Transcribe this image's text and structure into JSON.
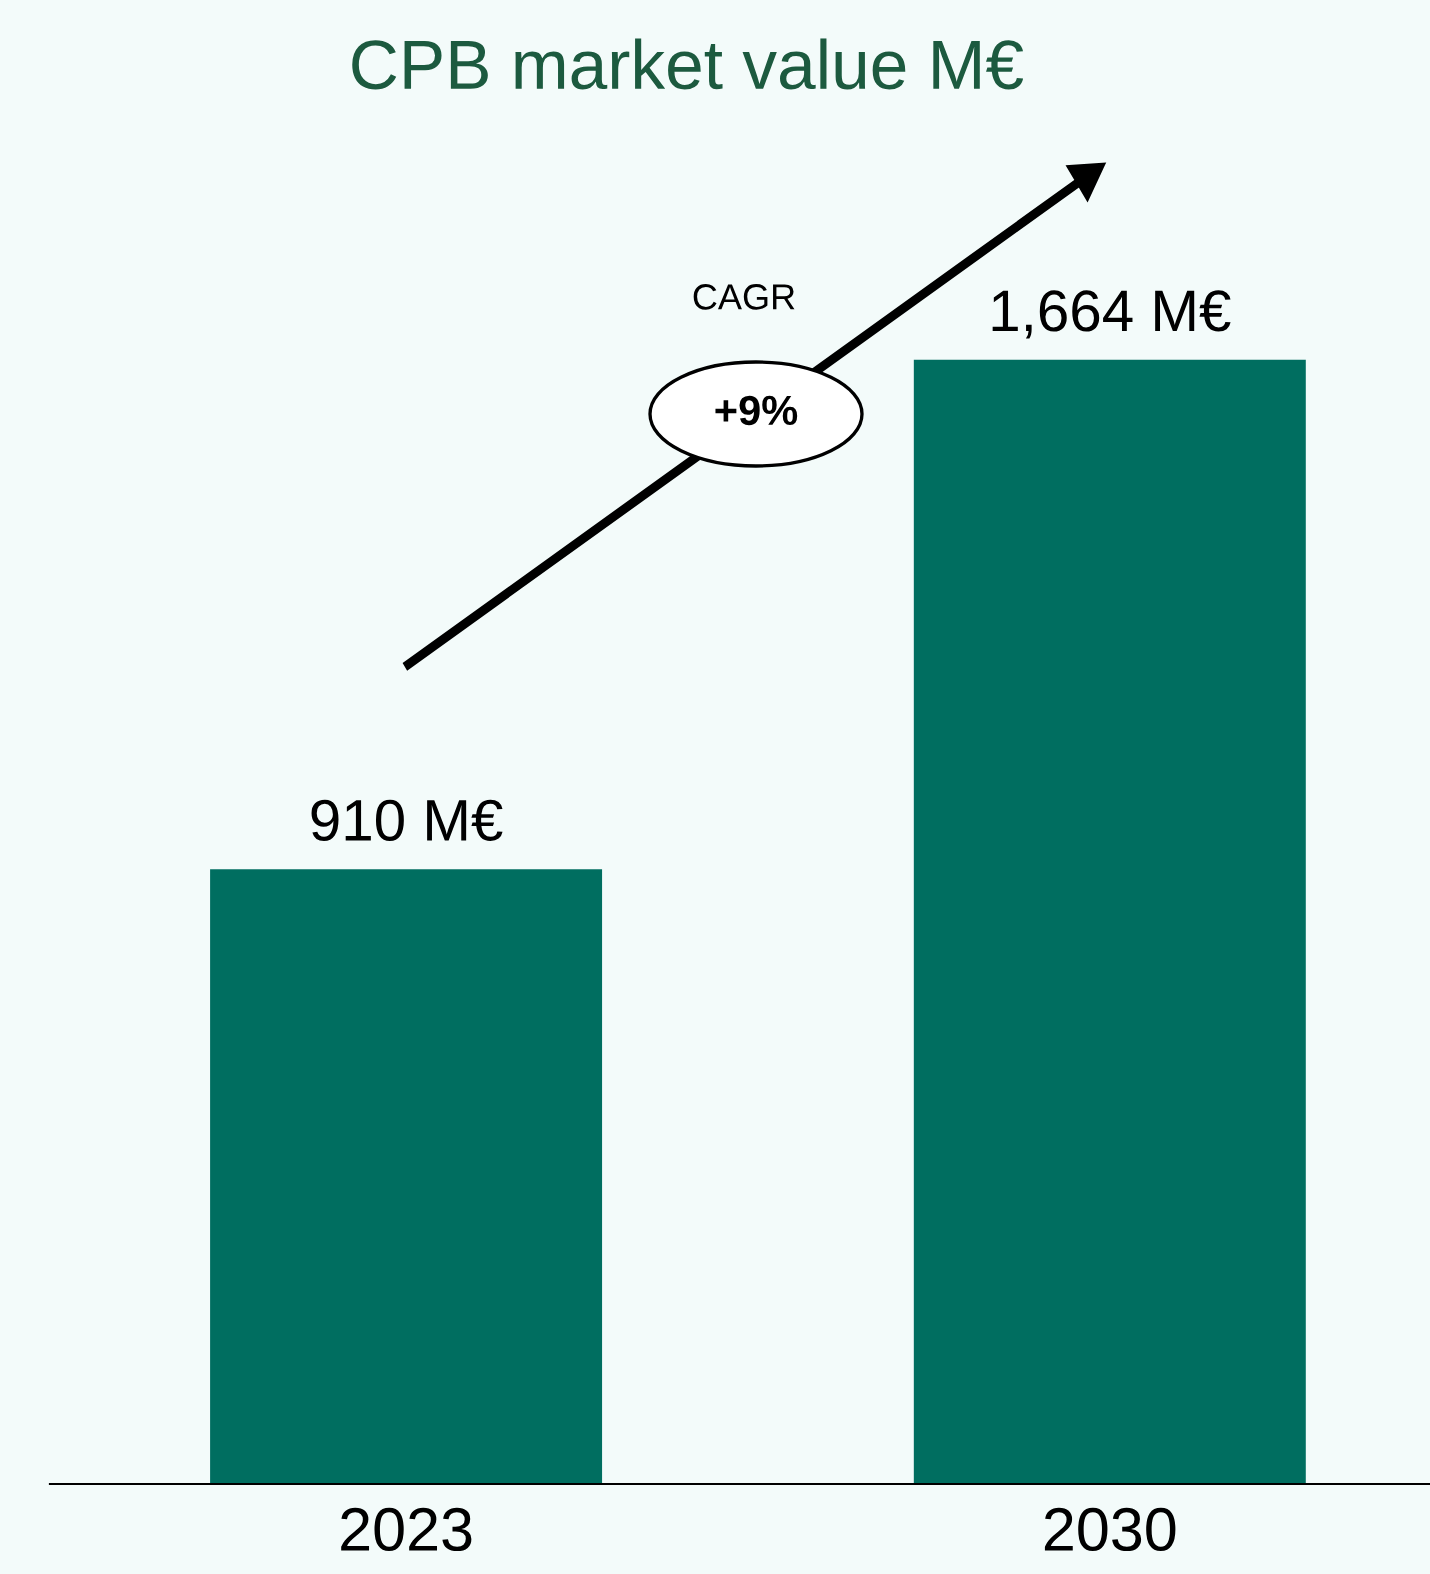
{
  "chart_data": {
    "type": "bar",
    "title": "CPB market value M€",
    "categories": [
      "2023",
      "2030"
    ],
    "values": [
      910,
      1664
    ],
    "value_labels": [
      "910 M€",
      "1,664 M€"
    ],
    "color": "#006e60",
    "annotations": [
      "CAGR",
      "+9%"
    ],
    "grid": false
  }
}
